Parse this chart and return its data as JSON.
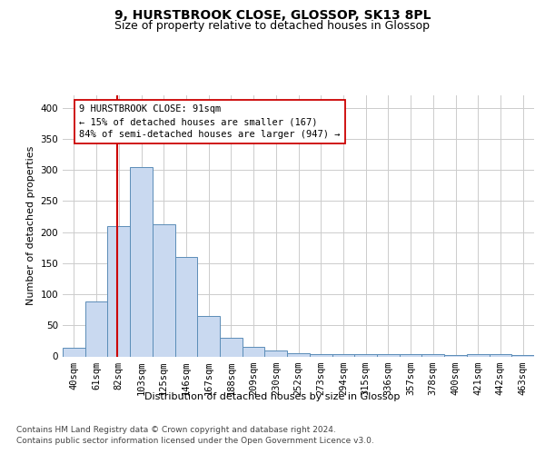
{
  "title_line1": "9, HURSTBROOK CLOSE, GLOSSOP, SK13 8PL",
  "title_line2": "Size of property relative to detached houses in Glossop",
  "xlabel": "Distribution of detached houses by size in Glossop",
  "ylabel": "Number of detached properties",
  "footer_line1": "Contains HM Land Registry data © Crown copyright and database right 2024.",
  "footer_line2": "Contains public sector information licensed under the Open Government Licence v3.0.",
  "categories": [
    "40sqm",
    "61sqm",
    "82sqm",
    "103sqm",
    "125sqm",
    "146sqm",
    "167sqm",
    "188sqm",
    "209sqm",
    "230sqm",
    "252sqm",
    "273sqm",
    "294sqm",
    "315sqm",
    "336sqm",
    "357sqm",
    "378sqm",
    "400sqm",
    "421sqm",
    "442sqm",
    "463sqm"
  ],
  "values": [
    14,
    88,
    210,
    304,
    212,
    160,
    65,
    30,
    15,
    9,
    5,
    4,
    3,
    3,
    3,
    3,
    3,
    2,
    3,
    3,
    2
  ],
  "bar_color": "#c9d9f0",
  "bar_edge_color": "#5b8db8",
  "property_line_color": "#cc0000",
  "annotation_line1": "9 HURSTBROOK CLOSE: 91sqm",
  "annotation_line2": "← 15% of detached houses are smaller (167)",
  "annotation_line3": "84% of semi-detached houses are larger (947) →",
  "annotation_box_color": "#ffffff",
  "annotation_box_edge": "#cc0000",
  "ylim": [
    0,
    420
  ],
  "yticks": [
    0,
    50,
    100,
    150,
    200,
    250,
    300,
    350,
    400
  ],
  "background_color": "#ffffff",
  "grid_color": "#cccccc",
  "title_fontsize": 10,
  "subtitle_fontsize": 9,
  "ylabel_fontsize": 8,
  "xlabel_fontsize": 8,
  "tick_fontsize": 7.5,
  "footer_fontsize": 6.5,
  "annotation_fontsize": 7.5
}
